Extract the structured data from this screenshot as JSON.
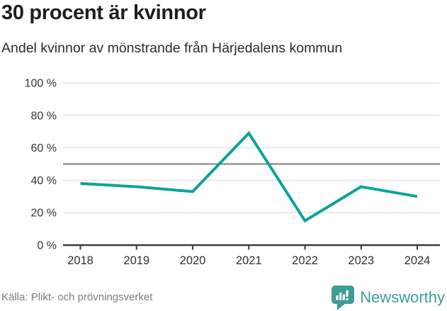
{
  "header": {
    "title": "30 procent är kvinnor",
    "subtitle": "Andel kvinnor av mönstrande från Härjedalens kommun"
  },
  "chart_data": {
    "type": "line",
    "x": [
      "2018",
      "2019",
      "2020",
      "2021",
      "2022",
      "2023",
      "2024"
    ],
    "series": [
      {
        "name": "Andel kvinnor av mönstrande",
        "values": [
          38,
          36,
          33,
          69,
          15,
          36,
          30
        ]
      }
    ],
    "title": "30 procent är kvinnor",
    "subtitle": "Andel kvinnor av mönstrande från Härjedalens kommun",
    "xlabel": "",
    "ylabel": "",
    "ylim": [
      0,
      100
    ],
    "yticks": [
      0,
      20,
      40,
      60,
      80,
      100
    ],
    "ytick_suffix": " %",
    "reference_line": 50,
    "grid": true,
    "legend_position": "none",
    "line_color": "#0da39a"
  },
  "colors": {
    "accent_line": "#0da39a",
    "gridline": "#e4e4e4",
    "reference_line": "#7e7e7e",
    "axis_line": "#3a3a3a",
    "axis_label": "#333330",
    "brand_teal": "#3f9d96"
  },
  "footer": {
    "source": "Källa: Plikt- och prövningsverket",
    "brand": "Newsworthy"
  },
  "icons": {
    "brand_logo": "newsworthy-chart-bubble-icon"
  }
}
